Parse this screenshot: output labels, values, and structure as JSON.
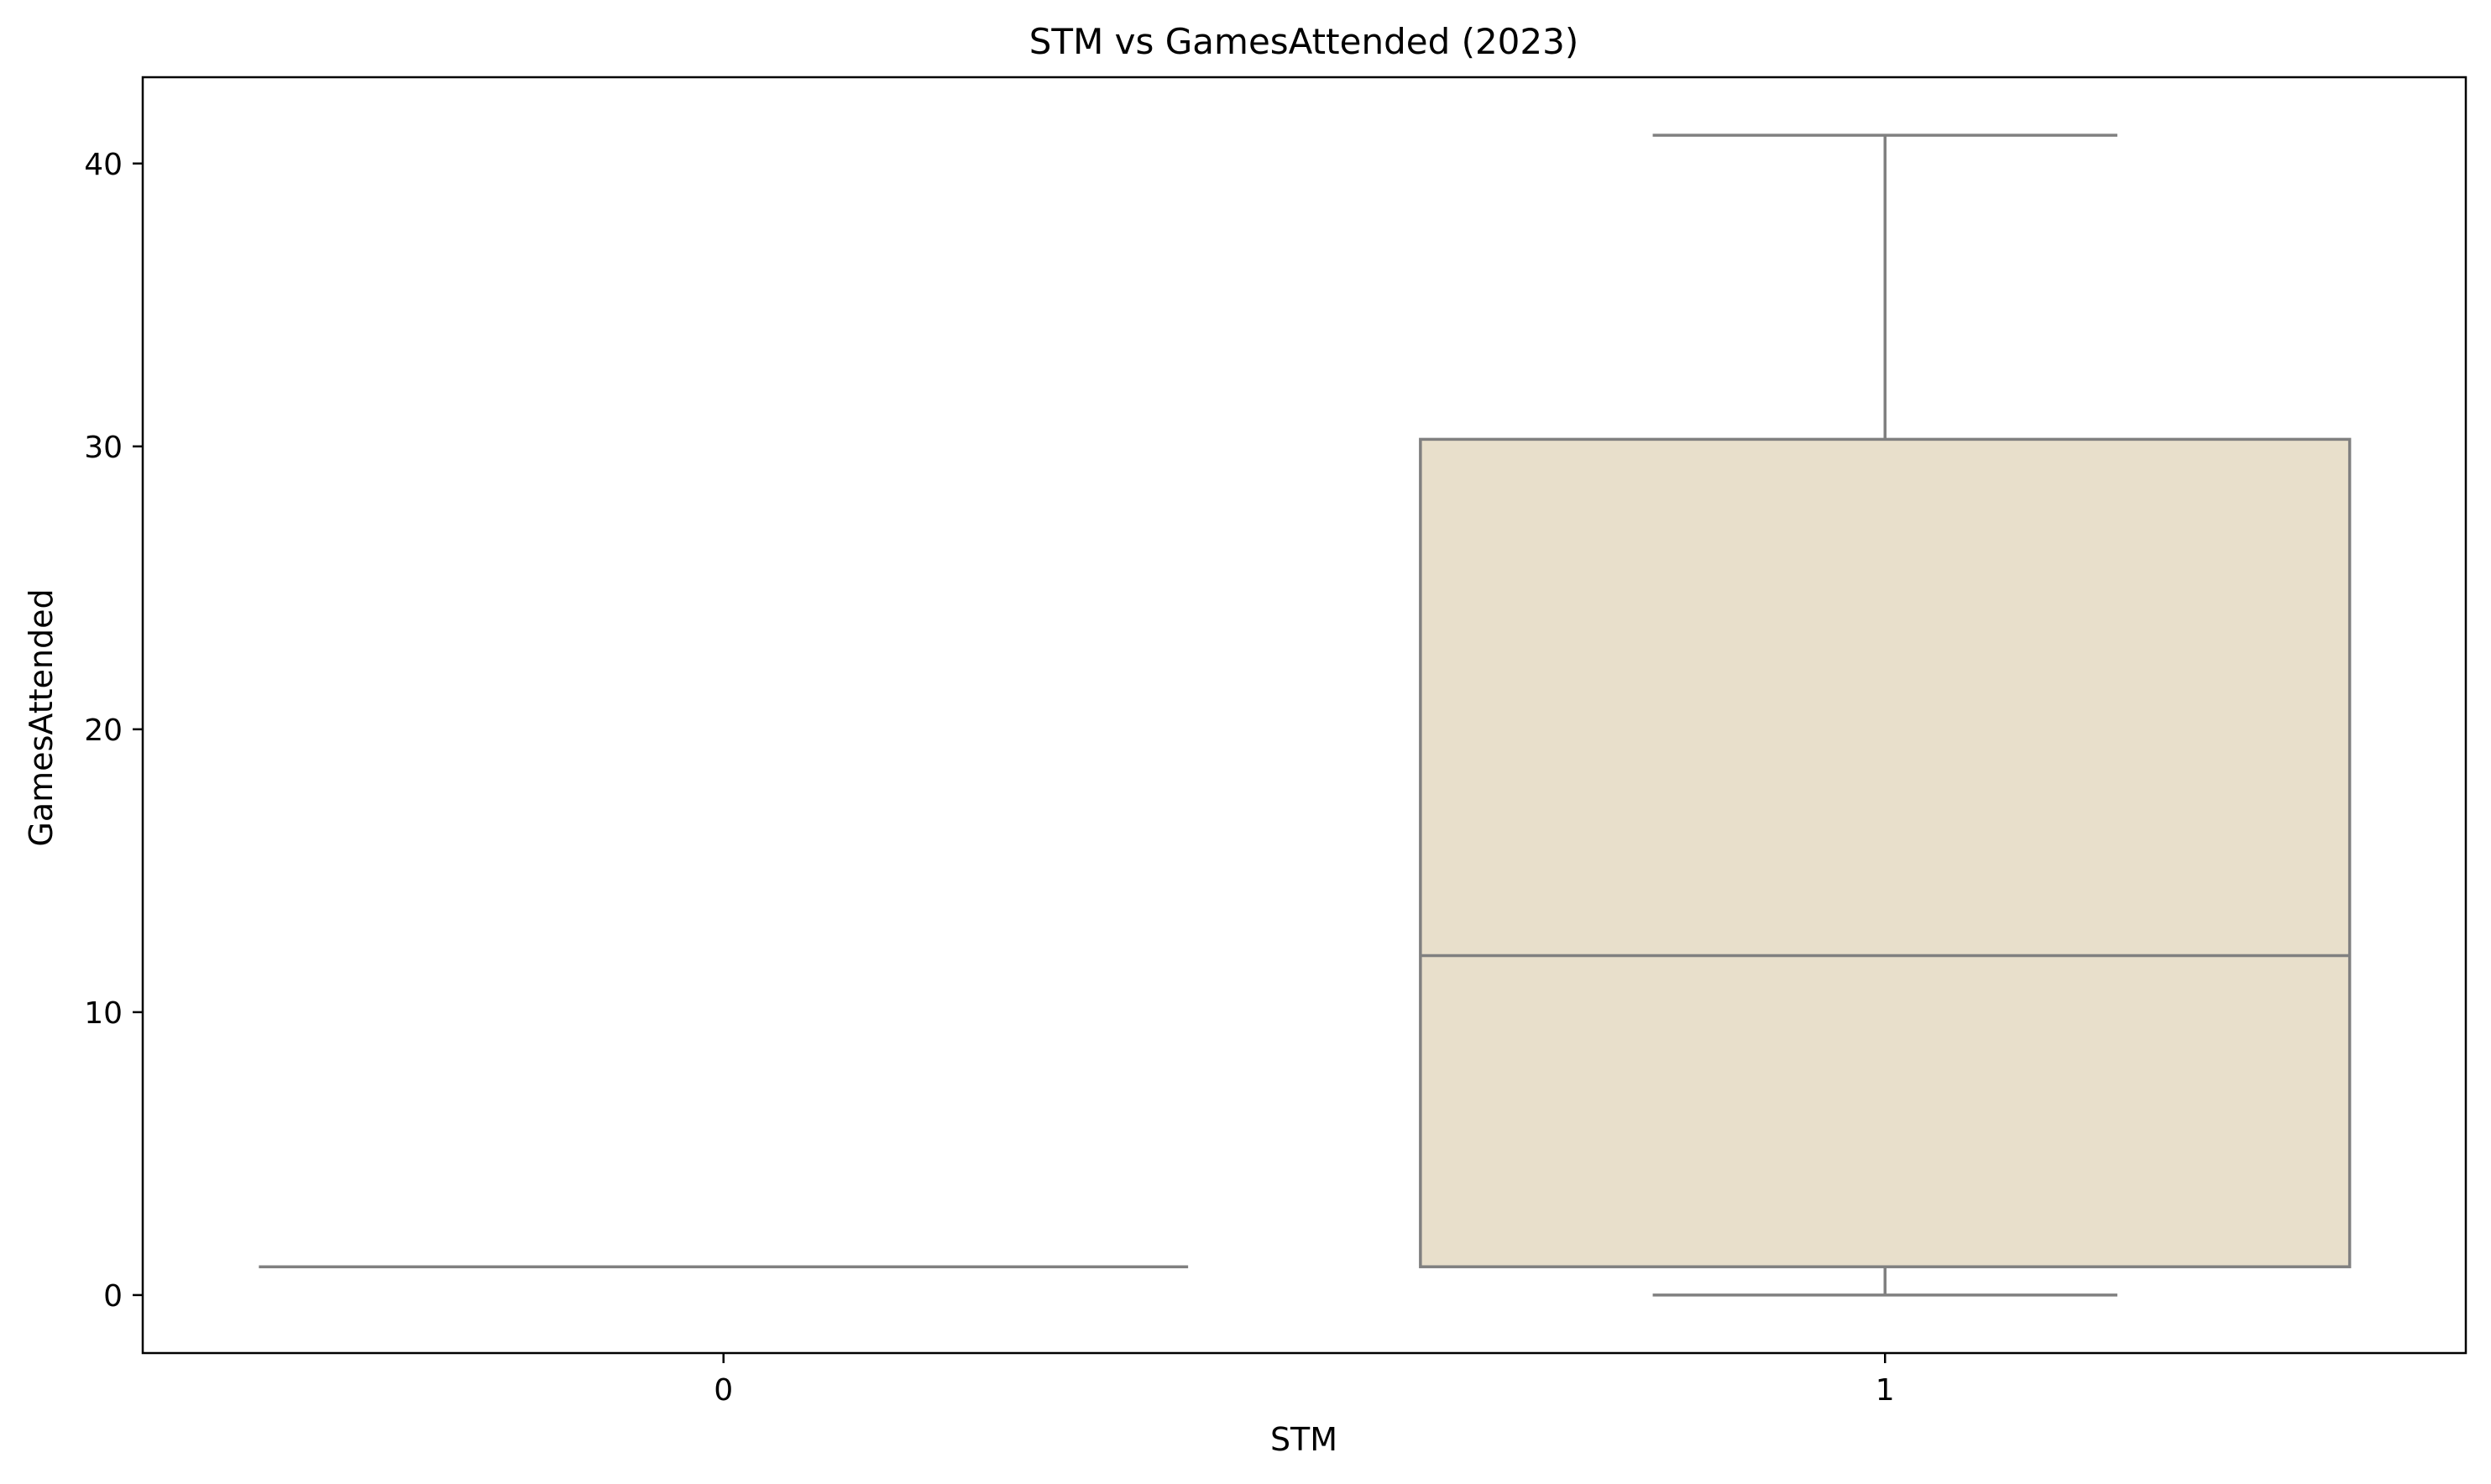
{
  "chart_data": {
    "type": "box",
    "title": "STM vs GamesAttended (2023)",
    "xlabel": "STM",
    "ylabel": "GamesAttended",
    "categories": [
      "0",
      "1"
    ],
    "ylim": [
      -2.05,
      43.05
    ],
    "yticks": [
      0,
      10,
      20,
      30,
      40
    ],
    "grid": false,
    "boxes": [
      {
        "category": "0",
        "whisker_low": 1,
        "q1": 1,
        "median": 1,
        "q3": 1,
        "whisker_high": 1
      },
      {
        "category": "1",
        "whisker_low": 0,
        "q1": 1,
        "median": 12,
        "q3": 30.25,
        "whisker_high": 41
      }
    ],
    "colors": {
      "box_fill": "#e8dfcb",
      "box_edge": "#808080",
      "axes": "#000000"
    }
  }
}
